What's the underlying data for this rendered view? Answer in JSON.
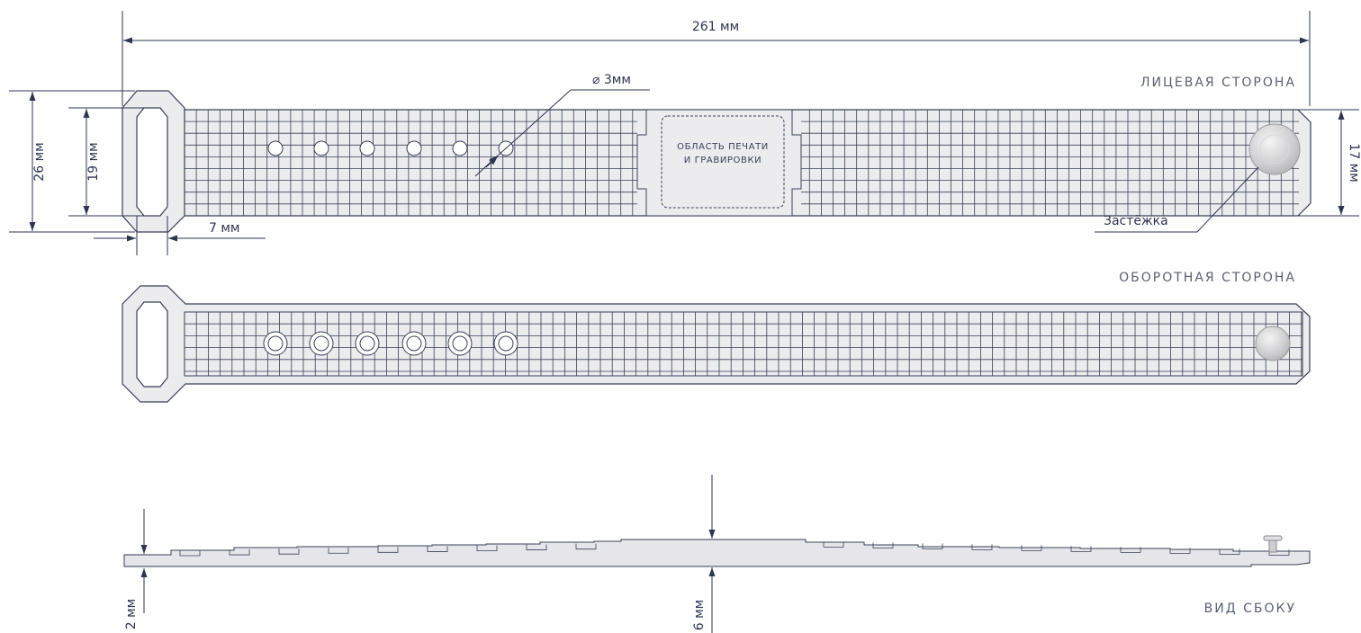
{
  "dimensions": {
    "length": "261 мм",
    "full_width": "26 мм",
    "inner_width": "19 мм",
    "strap_width": "17 мм",
    "loop_thickness": "7 мм",
    "hole_diameter": "⌀ 3мм",
    "edge_thickness": "2 мм",
    "center_thickness": "6 мм"
  },
  "labels": {
    "front_side": "ЛИЦЕВАЯ СТОРОНА",
    "back_side": "ОБОРОТНАЯ СТОРОНА",
    "side_view": "ВИД СБОКУ",
    "clasp": "Застёжка",
    "print_area_line1": "ОБЛАСТЬ ПЕЧАТИ",
    "print_area_line2": "И ГРАВИРОВКИ"
  },
  "colors": {
    "line": "#3a4055",
    "dimension": "#2d3550",
    "strap_fill": "#ececef",
    "caption": "#5b6070"
  }
}
